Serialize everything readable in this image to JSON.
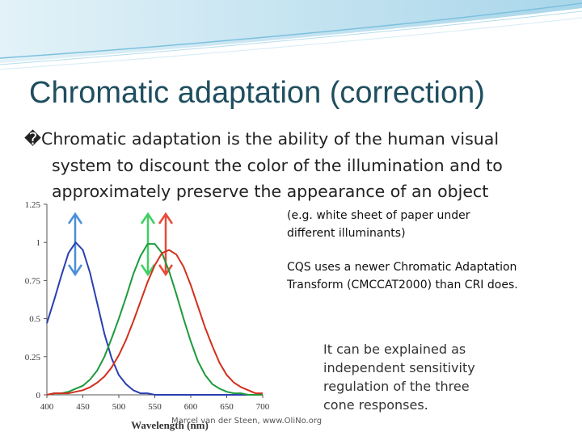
{
  "slide": {
    "title": "Chromatic adaptation (correction)",
    "bullet_lines": [
      "�Chromatic adaptation is the ability of the human visual",
      "system to discount the color of the illumination and to",
      "approximately preserve the appearance of an object"
    ],
    "note_1": "(e.g. white sheet of paper under different illuminants)",
    "note_2": "CQS uses a newer Chromatic Adaptation Transform (CMCCAT2000) than CRI does.",
    "note_3": "It can be explained as independent sensitivity regulation of the three cone responses.",
    "credit": "Marcel van der Steen, www.OliNo.org"
  },
  "chart_data": {
    "type": "line",
    "x_label": "Wavelength (nm)",
    "x": [
      400,
      410,
      420,
      430,
      440,
      450,
      460,
      470,
      480,
      490,
      500,
      510,
      520,
      530,
      540,
      550,
      560,
      570,
      580,
      590,
      600,
      610,
      620,
      630,
      640,
      650,
      660,
      670,
      680,
      690,
      700
    ],
    "series": [
      {
        "color": "#2a3fb0",
        "values": [
          0.47,
          0.62,
          0.78,
          0.93,
          1.0,
          0.95,
          0.8,
          0.6,
          0.4,
          0.24,
          0.13,
          0.07,
          0.03,
          0.01,
          0.01,
          0,
          0,
          0,
          0,
          0,
          0,
          0,
          0,
          0,
          0,
          0,
          0,
          0,
          0,
          0,
          0
        ]
      },
      {
        "color": "#1e9a3a",
        "values": [
          0,
          0.01,
          0.01,
          0.02,
          0.04,
          0.06,
          0.1,
          0.16,
          0.25,
          0.37,
          0.5,
          0.64,
          0.79,
          0.91,
          0.99,
          0.99,
          0.93,
          0.81,
          0.66,
          0.5,
          0.35,
          0.22,
          0.13,
          0.07,
          0.04,
          0.02,
          0.01,
          0.01,
          0,
          0,
          0
        ]
      },
      {
        "color": "#d2301e",
        "values": [
          0,
          0.01,
          0.01,
          0.01,
          0.02,
          0.03,
          0.05,
          0.08,
          0.12,
          0.18,
          0.26,
          0.36,
          0.48,
          0.61,
          0.74,
          0.85,
          0.93,
          0.95,
          0.92,
          0.84,
          0.72,
          0.58,
          0.44,
          0.32,
          0.21,
          0.13,
          0.08,
          0.05,
          0.03,
          0.01,
          0.01
        ]
      }
    ],
    "xlim": [
      400,
      700
    ],
    "ylim": [
      0,
      1.25
    ],
    "xticks": [
      400,
      450,
      500,
      550,
      600,
      650,
      700
    ],
    "yticks": [
      0,
      0.25,
      0.5,
      0.75,
      1,
      1.25
    ]
  }
}
